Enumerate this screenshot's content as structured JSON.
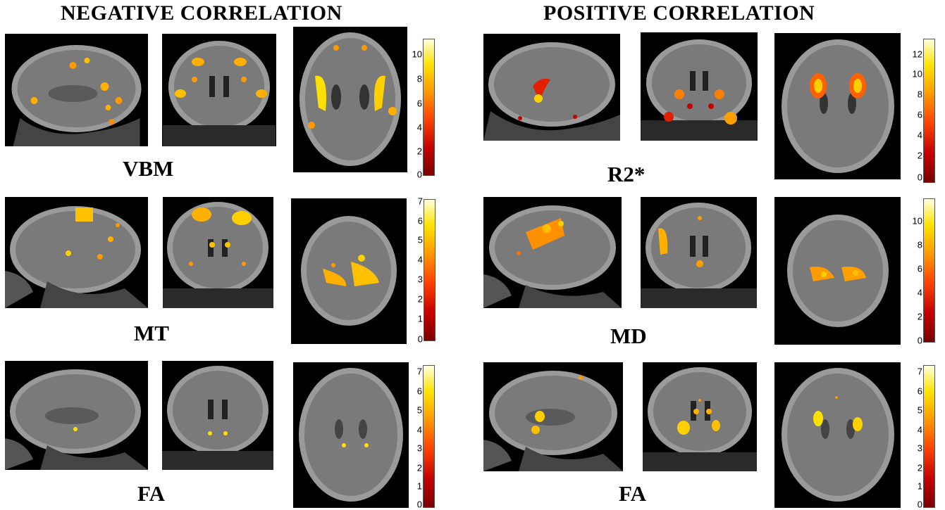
{
  "headers": {
    "negative": "NEGATIVE CORRELATION",
    "positive": "POSITIVE CORRELATION"
  },
  "labels": {
    "vbm": "VBM",
    "r2": "R2*",
    "mt": "MT",
    "md": "MD",
    "fa_neg": "FA",
    "fa_pos": "FA"
  },
  "colorbars": {
    "vbm": {
      "max": 11,
      "ticks": [
        "10",
        "8",
        "6",
        "4",
        "2",
        "0"
      ]
    },
    "r2": {
      "max": 13.5,
      "ticks": [
        "12",
        "10",
        "8",
        "6",
        "4",
        "2",
        "0"
      ]
    },
    "mt": {
      "max": 7,
      "ticks": [
        "7",
        "6",
        "5",
        "4",
        "3",
        "2",
        "1",
        "0"
      ]
    },
    "md": {
      "max": 12,
      "ticks": [
        "10",
        "8",
        "6",
        "4",
        "2",
        "0"
      ]
    },
    "fa_neg": {
      "max": 7.3,
      "ticks": [
        "7",
        "6",
        "5",
        "4",
        "3",
        "2",
        "1",
        "0"
      ]
    },
    "fa_pos": {
      "max": 7.3,
      "ticks": [
        "7",
        "6",
        "5",
        "4",
        "3",
        "2",
        "1",
        "0"
      ]
    }
  },
  "colors": {
    "brain_gray": "#8a8a8a",
    "background": "#000000",
    "activation_low": "#c40000",
    "activation_high": "#ffe400"
  }
}
